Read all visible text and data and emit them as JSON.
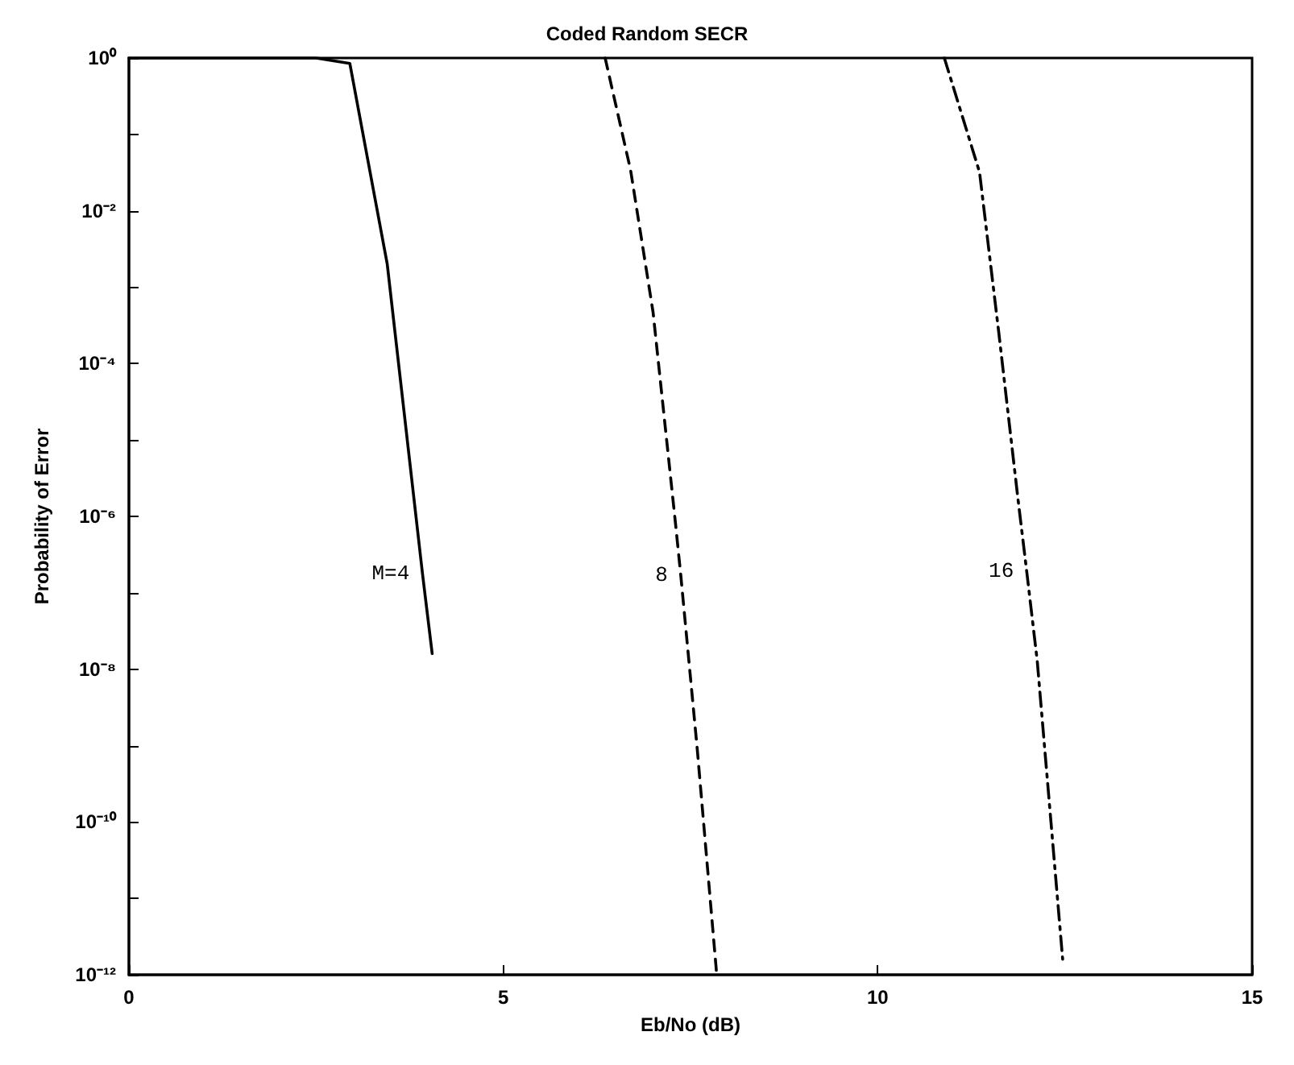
{
  "chart_data": {
    "type": "line",
    "title": "Coded Random SECR",
    "xlabel": "Eb/No (dB)",
    "ylabel": "Probability of Error",
    "log": "y",
    "grid": false,
    "marker": "none",
    "xlim": [
      0,
      15
    ],
    "xticks": [
      0,
      5,
      10,
      15
    ],
    "ylim": [
      1e-12,
      1
    ],
    "yticks": [
      {
        "value": 1,
        "label": "10⁰"
      },
      {
        "value": 0.1,
        "label": null
      },
      {
        "value": 0.01,
        "label": "10⁻²"
      },
      {
        "value": 0.001,
        "label": null
      },
      {
        "value": 0.0001,
        "label": "10⁻⁴"
      },
      {
        "value": 1e-05,
        "label": null
      },
      {
        "value": 1e-06,
        "label": "10⁻⁶"
      },
      {
        "value": 1e-07,
        "label": null
      },
      {
        "value": 1e-08,
        "label": "10⁻⁸"
      },
      {
        "value": 1e-09,
        "label": null
      },
      {
        "value": 1e-10,
        "label": "10⁻¹⁰"
      },
      {
        "value": 1e-11,
        "label": null
      },
      {
        "value": 1e-12,
        "label": "10⁻¹²"
      }
    ],
    "series": [
      {
        "color": "#000000",
        "line_style": "solid",
        "x": [
          0,
          2.5,
          2.95,
          3.45,
          3.92,
          4.05
        ],
        "values": [
          1,
          1,
          0.85,
          0.002,
          1.8e-07,
          1.6e-08
        ]
      },
      {
        "color": "#000000",
        "line_style": "dashed",
        "x": [
          6.36,
          6.7,
          7.0,
          7.3,
          7.37,
          7.59,
          7.85
        ],
        "values": [
          1,
          0.034,
          0.00047,
          8e-07,
          1.7e-07,
          9e-10,
          1e-12
        ]
      },
      {
        "color": "#000000",
        "line_style": "dashdot",
        "x": [
          10.89,
          11.36,
          11.62,
          11.87,
          11.99,
          12.13,
          12.47
        ],
        "values": [
          1,
          0.032,
          0.00024,
          1.8e-06,
          1.9e-07,
          1.3e-08,
          1.6e-12
        ]
      }
    ],
    "annotations": [
      {
        "text": "M=4",
        "x": 3.92,
        "y": 1.8e-07
      },
      {
        "text": "8",
        "x": 7.37,
        "y": 1.7e-07
      },
      {
        "text": "16",
        "x": 11.99,
        "y": 1.9e-07
      }
    ]
  }
}
